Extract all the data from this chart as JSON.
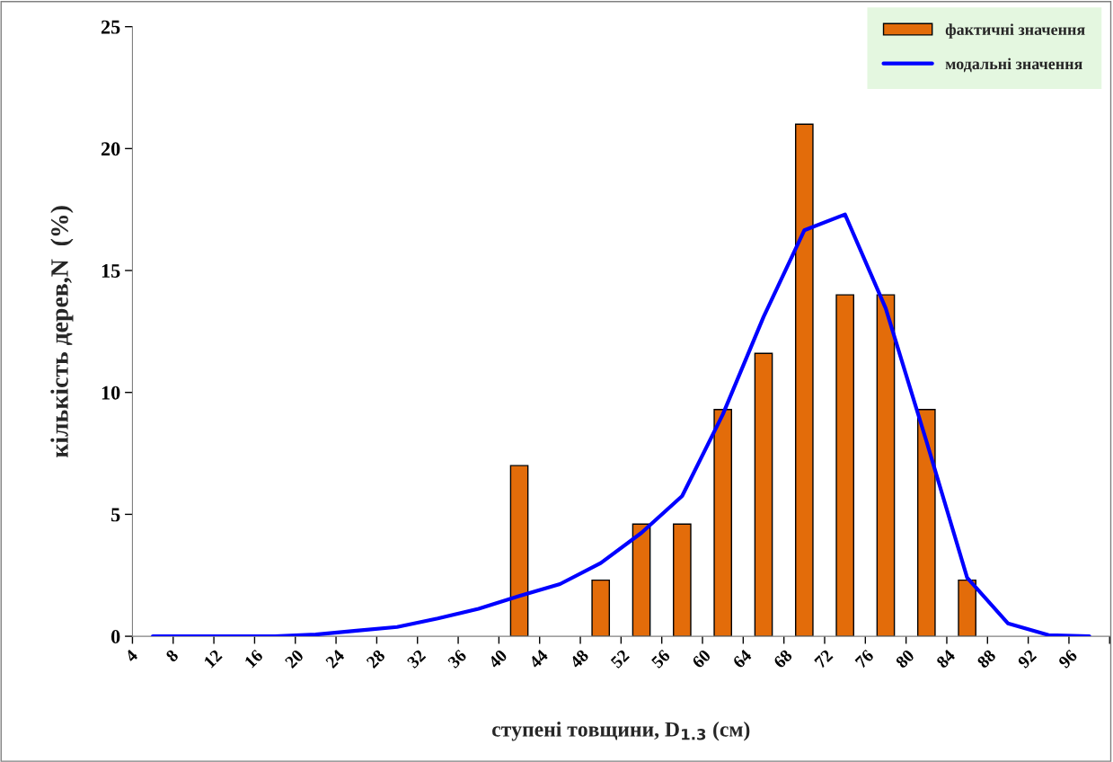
{
  "chart_data": {
    "type": "bar",
    "xlabel": "ступені товщини, D$_{1.3}$ (см)",
    "ylabel": "кількість дерев,N  (%)",
    "series": [
      {
        "name": "фактичні значення",
        "color": "#e36c0a",
        "x": [
          42,
          50,
          54,
          58,
          62,
          66,
          70,
          74,
          78,
          82,
          86
        ],
        "values": [
          7.0,
          2.3,
          4.6,
          4.6,
          9.3,
          11.6,
          21.0,
          14.0,
          14.0,
          9.3,
          2.3
        ]
      },
      {
        "name": "модальні значення",
        "type": "line",
        "color": "#0000ff",
        "x": [
          6,
          10,
          14,
          18,
          22,
          26,
          30,
          34,
          38,
          42,
          46,
          50,
          54,
          58,
          62,
          66,
          70,
          74,
          78,
          82,
          86,
          90,
          94,
          98
        ],
        "values": [
          0,
          0,
          0,
          0,
          0.07,
          0.23,
          0.38,
          0.73,
          1.13,
          1.65,
          2.14,
          3.0,
          4.24,
          5.75,
          9.1,
          13.1,
          16.65,
          17.3,
          13.45,
          8.0,
          2.4,
          0.53,
          0.05,
          0
        ]
      }
    ],
    "xlim": [
      4,
      100
    ],
    "xticks": [
      4,
      8,
      12,
      16,
      20,
      24,
      28,
      32,
      36,
      40,
      44,
      48,
      52,
      56,
      60,
      64,
      68,
      72,
      76,
      80,
      84,
      88,
      92,
      96,
      {
        "value": 100,
        "label": null
      }
    ],
    "ylim": [
      0,
      25
    ],
    "yticks": [
      0,
      5,
      10,
      15,
      20,
      25
    ],
    "grid": false,
    "legend": "top right",
    "marker": "none",
    "line_style": "solid"
  }
}
